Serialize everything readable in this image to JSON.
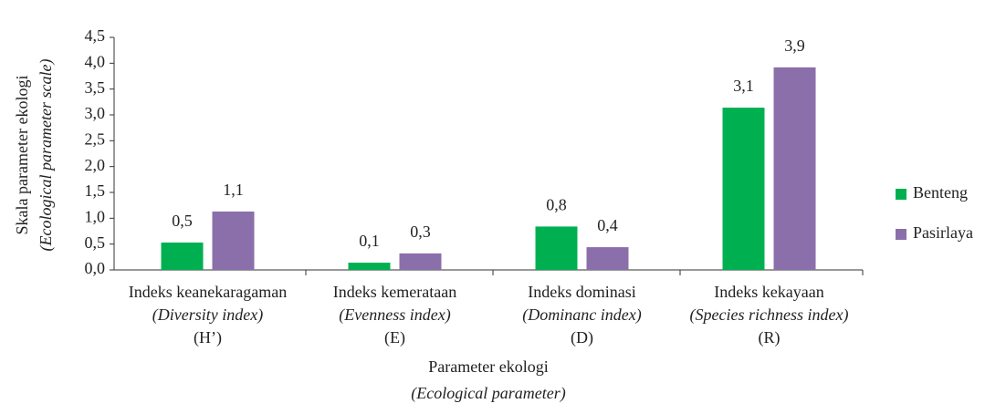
{
  "chart_data": {
    "type": "bar",
    "y_label": [
      "Skala parameter ekologi",
      "(Ecological parameter scale)"
    ],
    "x_label": [
      "Parameter ekologi",
      "(Ecological parameter)"
    ],
    "categories": [
      [
        "Indeks keanekaragaman",
        "(Diversity index)",
        "(H’)"
      ],
      [
        "Indeks kemerataan",
        "(Evenness index)",
        "(E)"
      ],
      [
        "Indeks dominasi",
        "(Dominanc index)",
        "(D)"
      ],
      [
        "Indeks kekayaan",
        "(Species richness index)",
        "(R)"
      ]
    ],
    "series": [
      {
        "name": "Benteng",
        "color": "#00b050",
        "values": [
          0.53,
          0.14,
          0.84,
          3.14
        ],
        "value_labels": [
          "0,5",
          "0,1",
          "0,8",
          "3,1"
        ]
      },
      {
        "name": "Pasirlaya",
        "color": "#8b6fab",
        "values": [
          1.13,
          0.32,
          0.44,
          3.92
        ],
        "value_labels": [
          "1,1",
          "0,3",
          "0,4",
          "3,9"
        ]
      }
    ],
    "ylim": [
      0,
      4.5
    ],
    "yticks": [
      {
        "value": 0,
        "label": "0,0"
      },
      {
        "value": 0.5,
        "label": "0,5"
      },
      {
        "value": 1,
        "label": "1,0"
      },
      {
        "value": 1.5,
        "label": "1,5"
      },
      {
        "value": 2,
        "label": "2,0"
      },
      {
        "value": 2.5,
        "label": "2,5"
      },
      {
        "value": 3,
        "label": "3,0"
      },
      {
        "value": 3.5,
        "label": "3,5"
      },
      {
        "value": 4,
        "label": "4,0"
      },
      {
        "value": 4.5,
        "label": "4,5"
      }
    ],
    "legend": "right"
  }
}
